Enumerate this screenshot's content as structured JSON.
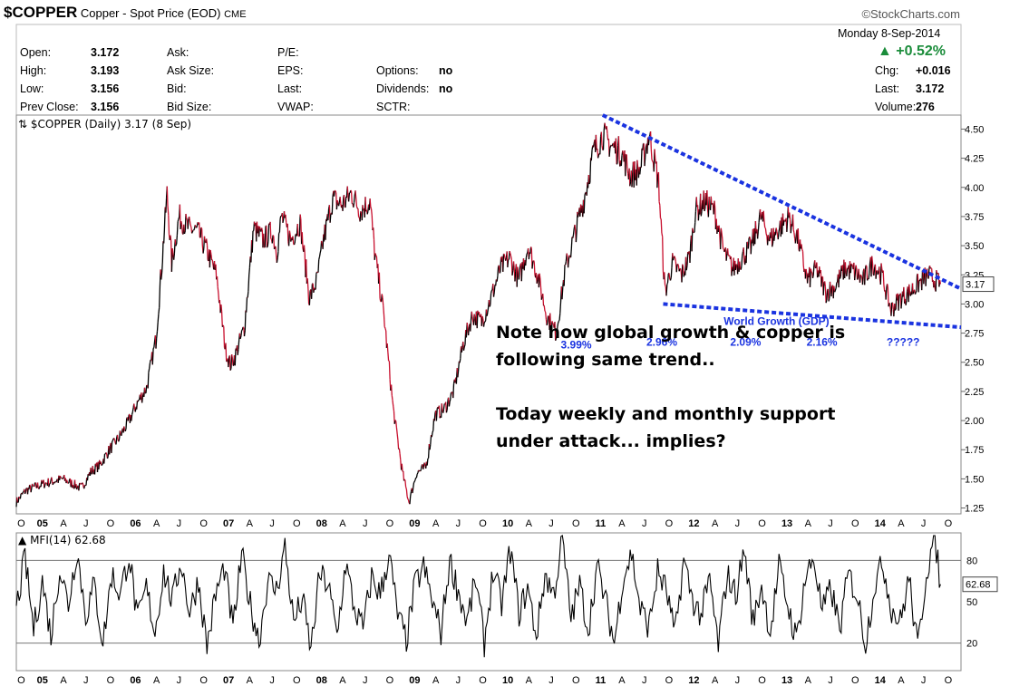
{
  "header": {
    "symbol": "$COPPER",
    "name": "Copper - Spot Price (EOD)",
    "exchange": "CME",
    "brand": "©StockCharts.com",
    "date": "Monday  8-Sep-2014",
    "change_pct": "+0.52%",
    "up_color": "#1a8c3a"
  },
  "quote": {
    "col1": [
      {
        "label": "Open:",
        "value": "3.172"
      },
      {
        "label": "High:",
        "value": "3.193"
      },
      {
        "label": "Low:",
        "value": "3.156"
      },
      {
        "label": "Prev Close:",
        "value": "3.156"
      }
    ],
    "col2": [
      {
        "label": "Ask:",
        "value": ""
      },
      {
        "label": "Ask Size:",
        "value": ""
      },
      {
        "label": "Bid:",
        "value": ""
      },
      {
        "label": "Bid Size:",
        "value": ""
      }
    ],
    "col3": [
      {
        "label": "P/E:",
        "value": ""
      },
      {
        "label": "EPS:",
        "value": ""
      },
      {
        "label": "Last:",
        "value": ""
      },
      {
        "label": "VWAP:",
        "value": ""
      }
    ],
    "col4": [
      {
        "label": "Options:",
        "value": "no"
      },
      {
        "label": "Dividends:",
        "value": "no"
      },
      {
        "label": "SCTR:",
        "value": ""
      }
    ],
    "col5": [
      {
        "label": "Chg:",
        "value": "+0.016"
      },
      {
        "label": "Last:",
        "value": "3.172"
      },
      {
        "label": "Volume:",
        "value": "276"
      }
    ]
  },
  "notes": {
    "line1": "Note how global growth & copper is",
    "line2": "following same trend..",
    "line3": "Today weekly and monthly support",
    "line4": "under attack... implies?"
  },
  "chart_data": [
    {
      "type": "line",
      "title": "$COPPER (Daily) 3.17 (8 Sep)",
      "ylim": [
        1.2,
        4.62
      ],
      "y_ticks": [
        1.25,
        1.5,
        1.75,
        2.0,
        2.25,
        2.5,
        2.75,
        3.0,
        3.25,
        3.5,
        3.75,
        4.0,
        4.25,
        4.5
      ],
      "y_tick_labels": [
        "1.25",
        "1.50",
        "1.75",
        "2.00",
        "2.25",
        "2.50",
        "2.75",
        "3.00",
        "3.25",
        "3.50",
        "3.75",
        "4.00",
        "4.25",
        "4.50"
      ],
      "last_value_label": "3.17",
      "x_range": [
        2004.75,
        2014.9
      ],
      "x_ticks": [
        {
          "t": 2004.79,
          "label": "O"
        },
        {
          "t": 2005.0,
          "label": "05",
          "bold": true
        },
        {
          "t": 2005.25,
          "label": "A"
        },
        {
          "t": 2005.5,
          "label": "J"
        },
        {
          "t": 2005.75,
          "label": "O"
        },
        {
          "t": 2006.0,
          "label": "06",
          "bold": true
        },
        {
          "t": 2006.25,
          "label": "A"
        },
        {
          "t": 2006.5,
          "label": "J"
        },
        {
          "t": 2006.75,
          "label": "O"
        },
        {
          "t": 2007.0,
          "label": "07",
          "bold": true
        },
        {
          "t": 2007.25,
          "label": "A"
        },
        {
          "t": 2007.5,
          "label": "J"
        },
        {
          "t": 2007.75,
          "label": "O"
        },
        {
          "t": 2008.0,
          "label": "08",
          "bold": true
        },
        {
          "t": 2008.25,
          "label": "A"
        },
        {
          "t": 2008.5,
          "label": "J"
        },
        {
          "t": 2008.75,
          "label": "O"
        },
        {
          "t": 2009.0,
          "label": "09",
          "bold": true
        },
        {
          "t": 2009.25,
          "label": "A"
        },
        {
          "t": 2009.5,
          "label": "J"
        },
        {
          "t": 2009.75,
          "label": "O"
        },
        {
          "t": 2010.0,
          "label": "10",
          "bold": true
        },
        {
          "t": 2010.25,
          "label": "A"
        },
        {
          "t": 2010.5,
          "label": "J"
        },
        {
          "t": 2010.75,
          "label": "O"
        },
        {
          "t": 2011.0,
          "label": "11",
          "bold": true
        },
        {
          "t": 2011.25,
          "label": "A"
        },
        {
          "t": 2011.5,
          "label": "J"
        },
        {
          "t": 2011.75,
          "label": "O"
        },
        {
          "t": 2012.0,
          "label": "12",
          "bold": true
        },
        {
          "t": 2012.25,
          "label": "A"
        },
        {
          "t": 2012.5,
          "label": "J"
        },
        {
          "t": 2012.75,
          "label": "O"
        },
        {
          "t": 2013.0,
          "label": "13",
          "bold": true
        },
        {
          "t": 2013.25,
          "label": "A"
        },
        {
          "t": 2013.5,
          "label": "J"
        },
        {
          "t": 2013.75,
          "label": "O"
        },
        {
          "t": 2014.0,
          "label": "14",
          "bold": true
        },
        {
          "t": 2014.25,
          "label": "A"
        },
        {
          "t": 2014.5,
          "label": "J"
        },
        {
          "t": 2014.75,
          "label": "O"
        }
      ],
      "series": [
        {
          "name": "Copper daily close (approx.)",
          "color": "#000000",
          "down_color": "#c8102e",
          "points": [
            [
              2004.75,
              1.3
            ],
            [
              2004.85,
              1.4
            ],
            [
              2004.95,
              1.43
            ],
            [
              2005.05,
              1.46
            ],
            [
              2005.15,
              1.48
            ],
            [
              2005.25,
              1.5
            ],
            [
              2005.35,
              1.46
            ],
            [
              2005.45,
              1.42
            ],
            [
              2005.55,
              1.56
            ],
            [
              2005.65,
              1.62
            ],
            [
              2005.75,
              1.75
            ],
            [
              2005.85,
              1.85
            ],
            [
              2005.95,
              1.98
            ],
            [
              2006.05,
              2.15
            ],
            [
              2006.15,
              2.28
            ],
            [
              2006.25,
              2.7
            ],
            [
              2006.3,
              3.2
            ],
            [
              2006.37,
              3.95
            ],
            [
              2006.42,
              3.35
            ],
            [
              2006.5,
              3.75
            ],
            [
              2006.6,
              3.65
            ],
            [
              2006.7,
              3.62
            ],
            [
              2006.8,
              3.45
            ],
            [
              2006.9,
              3.25
            ],
            [
              2007.0,
              2.6
            ],
            [
              2007.05,
              2.48
            ],
            [
              2007.1,
              2.55
            ],
            [
              2007.2,
              2.8
            ],
            [
              2007.3,
              3.65
            ],
            [
              2007.4,
              3.55
            ],
            [
              2007.5,
              3.62
            ],
            [
              2007.55,
              3.45
            ],
            [
              2007.6,
              3.75
            ],
            [
              2007.7,
              3.55
            ],
            [
              2007.8,
              3.7
            ],
            [
              2007.9,
              3.05
            ],
            [
              2007.98,
              3.2
            ],
            [
              2008.05,
              3.55
            ],
            [
              2008.15,
              3.9
            ],
            [
              2008.25,
              3.85
            ],
            [
              2008.35,
              3.95
            ],
            [
              2008.45,
              3.8
            ],
            [
              2008.55,
              3.88
            ],
            [
              2008.6,
              3.45
            ],
            [
              2008.7,
              2.9
            ],
            [
              2008.8,
              2.1
            ],
            [
              2008.9,
              1.55
            ],
            [
              2008.97,
              1.3
            ],
            [
              2009.05,
              1.55
            ],
            [
              2009.15,
              1.6
            ],
            [
              2009.25,
              2.05
            ],
            [
              2009.35,
              2.1
            ],
            [
              2009.45,
              2.25
            ],
            [
              2009.55,
              2.65
            ],
            [
              2009.65,
              2.9
            ],
            [
              2009.75,
              2.85
            ],
            [
              2009.85,
              3.05
            ],
            [
              2009.95,
              3.3
            ],
            [
              2010.05,
              3.4
            ],
            [
              2010.15,
              3.2
            ],
            [
              2010.25,
              3.5
            ],
            [
              2010.35,
              3.25
            ],
            [
              2010.45,
              2.9
            ],
            [
              2010.55,
              2.75
            ],
            [
              2010.65,
              3.3
            ],
            [
              2010.75,
              3.6
            ],
            [
              2010.85,
              3.9
            ],
            [
              2010.95,
              4.3
            ],
            [
              2011.05,
              4.45
            ],
            [
              2011.15,
              4.35
            ],
            [
              2011.25,
              4.3
            ],
            [
              2011.35,
              4.1
            ],
            [
              2011.45,
              4.15
            ],
            [
              2011.55,
              4.45
            ],
            [
              2011.65,
              4.05
            ],
            [
              2011.72,
              3.1
            ],
            [
              2011.8,
              3.35
            ],
            [
              2011.9,
              3.25
            ],
            [
              2011.98,
              3.4
            ],
            [
              2012.05,
              3.8
            ],
            [
              2012.15,
              3.88
            ],
            [
              2012.25,
              3.8
            ],
            [
              2012.35,
              3.45
            ],
            [
              2012.45,
              3.3
            ],
            [
              2012.55,
              3.4
            ],
            [
              2012.65,
              3.5
            ],
            [
              2012.75,
              3.75
            ],
            [
              2012.85,
              3.55
            ],
            [
              2012.95,
              3.65
            ],
            [
              2013.05,
              3.75
            ],
            [
              2013.15,
              3.55
            ],
            [
              2013.25,
              3.2
            ],
            [
              2013.35,
              3.3
            ],
            [
              2013.45,
              3.1
            ],
            [
              2013.55,
              3.15
            ],
            [
              2013.65,
              3.3
            ],
            [
              2013.75,
              3.28
            ],
            [
              2013.85,
              3.2
            ],
            [
              2013.95,
              3.35
            ],
            [
              2014.05,
              3.25
            ],
            [
              2014.15,
              2.95
            ],
            [
              2014.25,
              3.05
            ],
            [
              2014.35,
              3.1
            ],
            [
              2014.45,
              3.18
            ],
            [
              2014.55,
              3.25
            ],
            [
              2014.6,
              3.22
            ],
            [
              2014.68,
              3.17
            ]
          ]
        },
        {
          "name": "Upper trendline",
          "color": "#1a33e0",
          "dashed": true,
          "points": [
            [
              2011.05,
              4.62
            ],
            [
              2014.9,
              3.13
            ]
          ]
        },
        {
          "name": "Lower trendline",
          "color": "#1a33e0",
          "dashed": true,
          "points": [
            [
              2011.7,
              3.0
            ],
            [
              2014.9,
              2.8
            ]
          ]
        }
      ],
      "annotations": [
        {
          "t": 2010.6,
          "y": 2.62,
          "text": "3.99%",
          "color": "#1a33e0"
        },
        {
          "t": 2011.52,
          "y": 2.64,
          "text": "2.96%",
          "color": "#1a33e0"
        },
        {
          "t": 2012.42,
          "y": 2.64,
          "text": "2.09%",
          "color": "#1a33e0"
        },
        {
          "t": 2013.24,
          "y": 2.64,
          "text": "2.16%",
          "color": "#1a33e0"
        },
        {
          "t": 2014.1,
          "y": 2.64,
          "text": "?????",
          "color": "#1a33e0"
        },
        {
          "t": 2012.35,
          "y": 2.82,
          "text": "World Growth (GDP)",
          "color": "#1a33e0"
        }
      ]
    },
    {
      "type": "line",
      "title": "MFI(14) 62.68",
      "ylim": [
        0,
        100
      ],
      "y_ticks": [
        20,
        50,
        80
      ],
      "y_tick_labels": [
        "20",
        "50",
        "80"
      ],
      "reference_lines": [
        20,
        80
      ],
      "last_value_label": "62.68",
      "x_range": [
        2004.75,
        2014.9
      ],
      "series": [
        {
          "name": "MFI(14)",
          "color": "#000000",
          "values_monthly": [
            45,
            82,
            30,
            65,
            25,
            75,
            48,
            88,
            40,
            62,
            20,
            70,
            55,
            85,
            35,
            60,
            28,
            72,
            50,
            80,
            42,
            66,
            18,
            55,
            75,
            30,
            84,
            48,
            22,
            65,
            58,
            90,
            35,
            52,
            15,
            70,
            62,
            25,
            78,
            45,
            30,
            68,
            55,
            85,
            40,
            22,
            62,
            75,
            50,
            28,
            80,
            58,
            35,
            66,
            20,
            72,
            48,
            88,
            42,
            60,
            25,
            70,
            55,
            95,
            38,
            62,
            30,
            75,
            50,
            20,
            68,
            85,
            45,
            32,
            72,
            58,
            25,
            80,
            52,
            40,
            65,
            18,
            70,
            55,
            88,
            35,
            62,
            28,
            75,
            48,
            22,
            66,
            82,
            42,
            60,
            30,
            70,
            55,
            20,
            62,
            78,
            45,
            35,
            68,
            15,
            72,
            98,
            40,
            30,
            62
          ]
        }
      ]
    }
  ]
}
